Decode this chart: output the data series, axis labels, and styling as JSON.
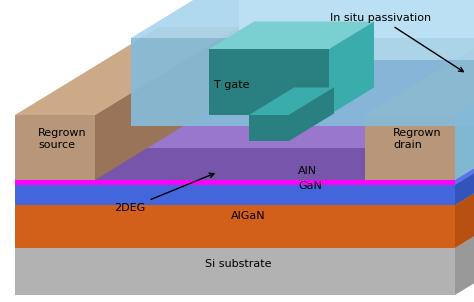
{
  "fig_width": 4.74,
  "fig_height": 3.02,
  "dpi": 100,
  "background_color": "#ffffff",
  "colors": {
    "si_substrate_front": "#b2b2b2",
    "si_substrate_top": "#cacaca",
    "si_substrate_side": "#999999",
    "algan_front": "#d2601a",
    "algan_top": "#e07030",
    "algan_side": "#b85010",
    "gan_front": "#4466dd",
    "gan_top": "#5577ee",
    "gan_side": "#3355bb",
    "deg_front": "#ff00ff",
    "deg_top": "#ff44ff",
    "aln_front": "#22cc22",
    "aln_top": "#44dd44",
    "passiv_front": "#7755aa",
    "passiv_top": "#9977cc",
    "passiv_side": "#6644aa",
    "source_front": "#b8967a",
    "source_top": "#ccaa88",
    "source_side": "#9a7458",
    "drain_front": "#b8967a",
    "drain_top": "#ccaa88",
    "drain_side": "#7fb8d0",
    "tgate_dark": "#2a8080",
    "tgate_mid": "#3aacac",
    "tgate_light": "#7ad0d0",
    "insitu_front": "#85bbd8",
    "insitu_top": "#aad5ee",
    "insitu_top2": "#c8e8f8",
    "insitu_side": "#6aaac8"
  },
  "labels": {
    "t_gate": "T gate",
    "in_situ": "In situ passivation",
    "regrown_source": "Regrown\nsource",
    "regrown_drain": "Regrown\ndrain",
    "aln": "AlN",
    "gan": "GaN",
    "2deg": "2DEG",
    "algan": "AlGaN",
    "si_substrate": "Si substrate"
  }
}
